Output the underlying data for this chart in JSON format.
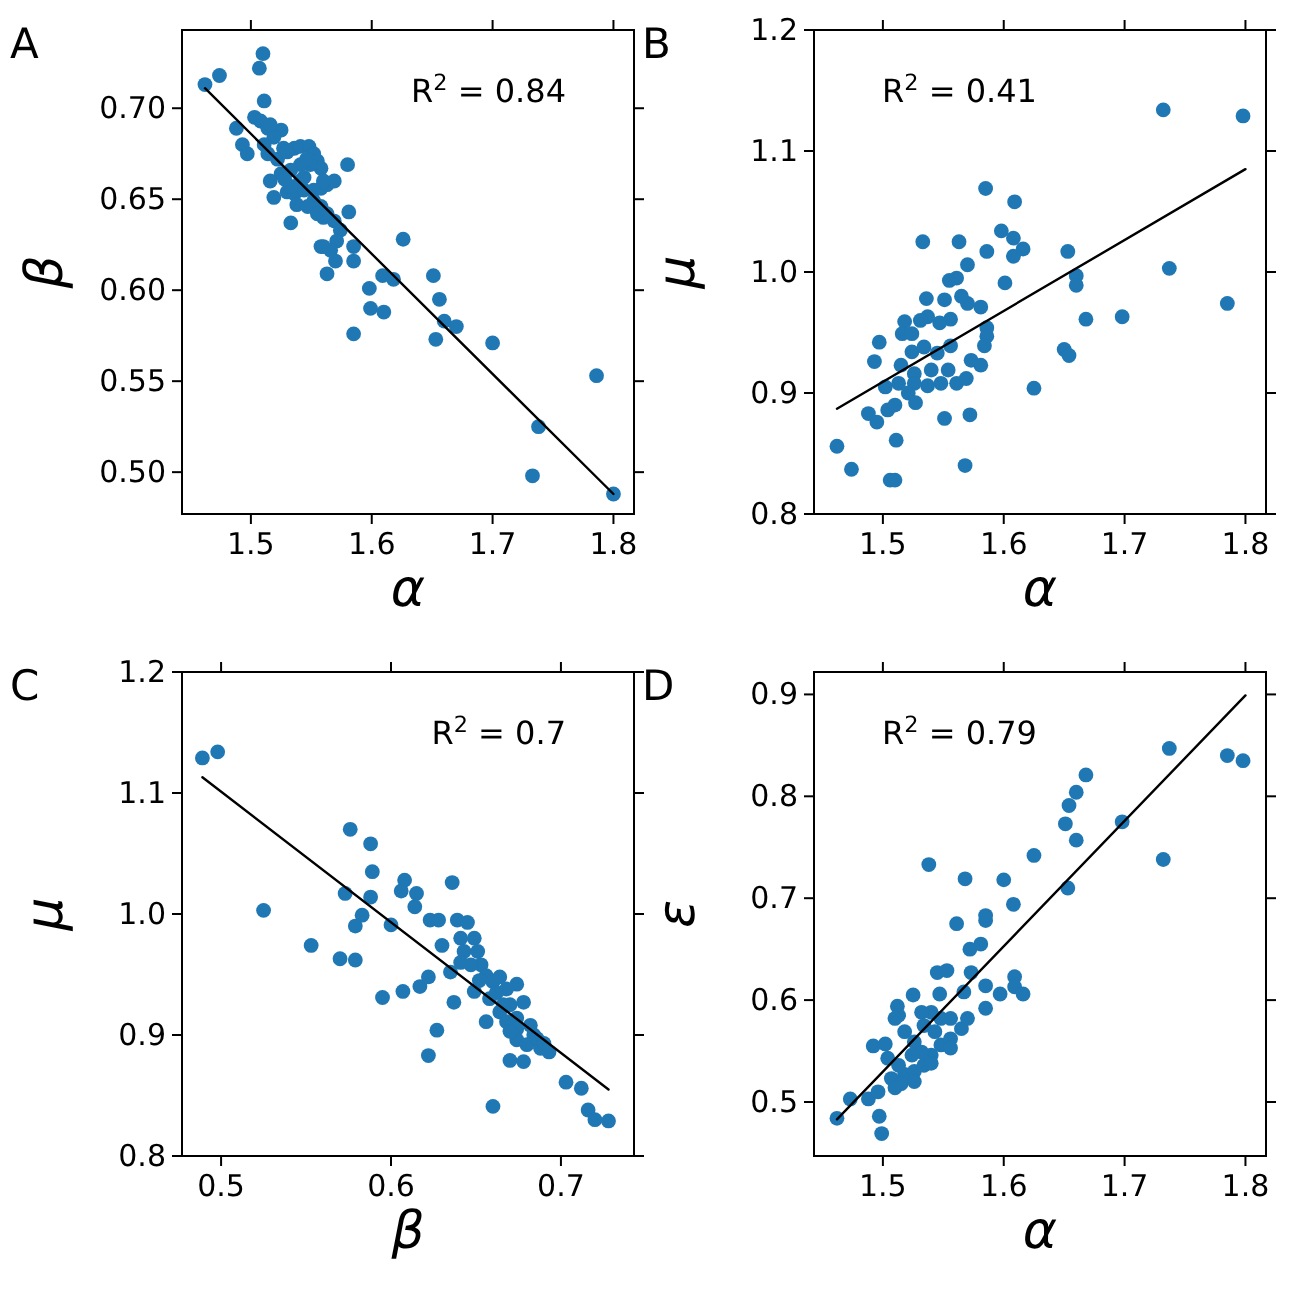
{
  "chart_data": [
    {
      "type": "scatter",
      "title": "A",
      "xlabel": "α",
      "ylabel": "β",
      "annotations": [
        "R$^{2}$ = 0.84"
      ],
      "xlim": [
        1.443,
        1.817
      ],
      "ylim": [
        0.477,
        0.743
      ],
      "xticks": [
        1.5,
        1.6,
        1.7,
        1.8
      ],
      "yticks": [
        {
          "value": 0.5,
          "label": "0.50"
        },
        0.55,
        {
          "value": 0.6,
          "label": "0.60"
        },
        0.65,
        {
          "value": 0.7,
          "label": "0.70"
        }
      ],
      "series": [
        {
          "type": "scatter",
          "marker": "circle",
          "color": "#1f77b4",
          "x": [
            1.462,
            1.474,
            1.51,
            1.507,
            1.511,
            1.488,
            1.493,
            1.497,
            1.503,
            1.508,
            1.514,
            1.525,
            1.519,
            1.511,
            1.514,
            1.527,
            1.536,
            1.541,
            1.548,
            1.552,
            1.555,
            1.558,
            1.549,
            1.541,
            1.533,
            1.525,
            1.516,
            1.519,
            1.53,
            1.536,
            1.544,
            1.552,
            1.558,
            1.563,
            1.569,
            1.552,
            1.558,
            1.563,
            1.569,
            1.574,
            1.571,
            1.566,
            1.558,
            1.563,
            1.57,
            1.58,
            1.581,
            1.585,
            1.585,
            1.533,
            1.541,
            1.538,
            1.547,
            1.555,
            1.626,
            1.598,
            1.609,
            1.618,
            1.599,
            1.61,
            1.585,
            1.651,
            1.656,
            1.66,
            1.67,
            1.653,
            1.7,
            1.786,
            1.738,
            1.733,
            1.8,
            1.516,
            1.533,
            1.544,
            1.56,
            1.56,
            1.56,
            1.522,
            1.53,
            1.546,
            1.528
          ],
          "values": [
            0.713,
            0.718,
            0.73,
            0.722,
            0.704,
            0.689,
            0.68,
            0.675,
            0.695,
            0.693,
            0.689,
            0.688,
            0.684,
            0.68,
            0.675,
            0.678,
            0.678,
            0.679,
            0.679,
            0.675,
            0.671,
            0.667,
            0.669,
            0.669,
            0.666,
            0.664,
            0.66,
            0.651,
            0.654,
            0.653,
            0.655,
            0.655,
            0.656,
            0.658,
            0.66,
            0.649,
            0.646,
            0.642,
            0.638,
            0.633,
            0.627,
            0.622,
            0.624,
            0.609,
            0.616,
            0.669,
            0.643,
            0.624,
            0.616,
            0.637,
            0.66,
            0.647,
            0.646,
            0.642,
            0.628,
            0.601,
            0.608,
            0.606,
            0.59,
            0.588,
            0.576,
            0.608,
            0.595,
            0.583,
            0.58,
            0.573,
            0.571,
            0.553,
            0.525,
            0.498,
            0.488,
            0.691,
            0.657,
            0.662,
            0.66,
            0.64,
            0.624,
            0.672,
            0.676,
            0.672,
            0.661
          ]
        },
        {
          "type": "line",
          "color": "#000000",
          "x": [
            1.462,
            1.8
          ],
          "values": [
            0.711,
            0.488
          ]
        }
      ]
    },
    {
      "type": "scatter",
      "title": "B",
      "xlabel": "α",
      "ylabel": "μ",
      "annotations": [
        "R$^{2}$ = 0.41"
      ],
      "xlim": [
        1.443,
        1.817
      ],
      "ylim": [
        0.8,
        1.2
      ],
      "xticks": [
        1.5,
        1.6,
        1.7,
        1.8
      ],
      "yticks": [
        0.8,
        0.9,
        {
          "value": 1,
          "label": "1.0"
        },
        1.1,
        1.2
      ],
      "series": [
        {
          "type": "scatter",
          "marker": "circle",
          "color": "#1f77b4",
          "x": [
            1.462,
            1.474,
            1.488,
            1.495,
            1.497,
            1.493,
            1.506,
            1.51,
            1.511,
            1.518,
            1.516,
            1.533,
            1.536,
            1.551,
            1.568,
            1.572,
            1.563,
            1.555,
            1.561,
            1.57,
            1.585,
            1.586,
            1.598,
            1.609,
            1.608,
            1.608,
            1.616,
            1.601,
            1.586,
            1.586,
            1.584,
            1.581,
            1.573,
            1.57,
            1.581,
            1.565,
            1.551,
            1.556,
            1.547,
            1.537,
            1.531,
            1.524,
            1.524,
            1.534,
            1.545,
            1.556,
            1.515,
            1.526,
            1.54,
            1.554,
            1.561,
            1.548,
            1.537,
            1.526,
            1.513,
            1.502,
            1.504,
            1.51,
            1.521,
            1.527,
            1.569,
            1.653,
            1.66,
            1.66,
            1.668,
            1.65,
            1.654,
            1.625,
            1.698,
            1.732,
            1.737,
            1.785,
            1.798
          ],
          "values": [
            0.856,
            0.837,
            0.883,
            0.876,
            0.942,
            0.926,
            0.828,
            0.828,
            0.861,
            0.959,
            0.949,
            1.025,
            0.978,
            0.879,
            0.84,
            0.882,
            1.025,
            0.993,
            0.995,
            1.006,
            1.069,
            1.017,
            1.034,
            1.058,
            1.028,
            1.013,
            1.019,
            0.991,
            0.954,
            0.947,
            0.939,
            0.923,
            0.927,
            0.974,
            0.971,
            0.98,
            0.977,
            0.961,
            0.958,
            0.963,
            0.96,
            0.949,
            0.934,
            0.938,
            0.933,
            0.939,
            0.923,
            0.916,
            0.919,
            0.919,
            0.908,
            0.908,
            0.906,
            0.908,
            0.908,
            0.905,
            0.886,
            0.89,
            0.9,
            0.892,
            0.912,
            1.017,
            0.997,
            0.989,
            0.961,
            0.936,
            0.931,
            0.904,
            0.963,
            1.134,
            1.003,
            0.974,
            1.129
          ]
        },
        {
          "type": "line",
          "color": "#000000",
          "x": [
            1.462,
            1.8
          ],
          "values": [
            0.887,
            1.085
          ]
        }
      ]
    },
    {
      "type": "scatter",
      "title": "C",
      "xlabel": "β",
      "ylabel": "μ",
      "annotations": [
        "R$^{2}$ = 0.7"
      ],
      "xlim": [
        0.477,
        0.743
      ],
      "ylim": [
        0.8,
        1.2
      ],
      "xticks": [
        0.5,
        0.6,
        0.7
      ],
      "yticks": [
        0.8,
        0.9,
        {
          "value": 1,
          "label": "1.0"
        },
        1.1,
        1.2
      ],
      "series": [
        {
          "type": "scatter",
          "marker": "circle",
          "color": "#1f77b4",
          "x": [
            0.489,
            0.498,
            0.525,
            0.553,
            0.57,
            0.579,
            0.576,
            0.588,
            0.589,
            0.573,
            0.588,
            0.583,
            0.579,
            0.6,
            0.595,
            0.607,
            0.617,
            0.622,
            0.627,
            0.622,
            0.608,
            0.606,
            0.615,
            0.614,
            0.623,
            0.628,
            0.636,
            0.639,
            0.645,
            0.63,
            0.635,
            0.637,
            0.641,
            0.643,
            0.649,
            0.651,
            0.653,
            0.656,
            0.66,
            0.664,
            0.668,
            0.674,
            0.67,
            0.678,
            0.658,
            0.656,
            0.664,
            0.668,
            0.674,
            0.674,
            0.682,
            0.684,
            0.674,
            0.68,
            0.688,
            0.693,
            0.67,
            0.678,
            0.66,
            0.703,
            0.712,
            0.716,
            0.72,
            0.728,
            0.647,
            0.649,
            0.686,
            0.67,
            0.641,
            0.662,
            0.666,
            0.69,
            0.652
          ],
          "values": [
            1.129,
            1.134,
            1.003,
            0.974,
            0.963,
            0.962,
            1.07,
            1.058,
            1.035,
            1.017,
            1.014,
            0.999,
            0.99,
            0.991,
            0.931,
            0.936,
            0.94,
            0.948,
            0.904,
            0.883,
            1.028,
            1.019,
            1.017,
            1.006,
            0.995,
            0.995,
            1.026,
            0.995,
            0.993,
            0.974,
            0.952,
            0.927,
            0.98,
            0.969,
            0.98,
            0.969,
            0.958,
            0.949,
            0.944,
            0.948,
            0.938,
            0.942,
            0.925,
            0.927,
            0.93,
            0.911,
            0.919,
            0.911,
            0.914,
            0.905,
            0.908,
            0.9,
            0.896,
            0.892,
            0.889,
            0.886,
            0.879,
            0.878,
            0.841,
            0.861,
            0.856,
            0.838,
            0.83,
            0.829,
            0.958,
            0.936,
            0.897,
            0.903,
            0.96,
            0.935,
            0.925,
            0.893,
            0.945
          ]
        },
        {
          "type": "line",
          "color": "#000000",
          "x": [
            0.489,
            0.728
          ],
          "values": [
            1.113,
            0.855
          ]
        }
      ]
    },
    {
      "type": "scatter",
      "title": "D",
      "xlabel": "α",
      "ylabel": "ε",
      "annotations": [
        "R$^{2}$ = 0.79"
      ],
      "xlim": [
        1.443,
        1.817
      ],
      "ylim": [
        0.447,
        0.922
      ],
      "xticks": [
        1.5,
        1.6,
        1.7,
        1.8
      ],
      "yticks": [
        0.5,
        0.6,
        0.7,
        0.8,
        0.9
      ],
      "series": [
        {
          "type": "scatter",
          "marker": "circle",
          "color": "#1f77b4",
          "x": [
            1.462,
            1.473,
            1.488,
            1.496,
            1.497,
            1.499,
            1.492,
            1.502,
            1.512,
            1.513,
            1.525,
            1.538,
            1.545,
            1.553,
            1.547,
            1.561,
            1.568,
            1.572,
            1.581,
            1.585,
            1.585,
            1.573,
            1.567,
            1.585,
            1.585,
            1.597,
            1.6,
            1.608,
            1.609,
            1.609,
            1.616,
            1.625,
            1.651,
            1.653,
            1.654,
            1.66,
            1.66,
            1.668,
            1.698,
            1.732,
            1.737,
            1.785,
            1.798,
            1.51,
            1.518,
            1.526,
            1.504,
            1.513,
            1.518,
            1.526,
            1.534,
            1.54,
            1.548,
            1.556,
            1.565,
            1.57,
            1.556,
            1.548,
            1.54,
            1.532,
            1.534,
            1.543,
            1.556,
            1.532,
            1.524,
            1.507,
            1.515,
            1.526,
            1.54,
            1.51
          ],
          "values": [
            0.484,
            0.503,
            0.503,
            0.51,
            0.486,
            0.469,
            0.555,
            0.557,
            0.594,
            0.585,
            0.605,
            0.733,
            0.627,
            0.629,
            0.606,
            0.675,
            0.719,
            0.65,
            0.655,
            0.678,
            0.683,
            0.627,
            0.608,
            0.614,
            0.592,
            0.606,
            0.718,
            0.694,
            0.623,
            0.613,
            0.606,
            0.742,
            0.773,
            0.71,
            0.791,
            0.757,
            0.804,
            0.821,
            0.775,
            0.738,
            0.847,
            0.84,
            0.835,
            0.582,
            0.569,
            0.559,
            0.543,
            0.536,
            0.527,
            0.53,
            0.536,
            0.546,
            0.556,
            0.562,
            0.572,
            0.582,
            0.582,
            0.582,
            0.588,
            0.588,
            0.575,
            0.569,
            0.553,
            0.549,
            0.546,
            0.523,
            0.518,
            0.52,
            0.538,
            0.514
          ]
        },
        {
          "type": "line",
          "color": "#000000",
          "x": [
            1.462,
            1.8
          ],
          "values": [
            0.483,
            0.899
          ]
        }
      ]
    }
  ]
}
